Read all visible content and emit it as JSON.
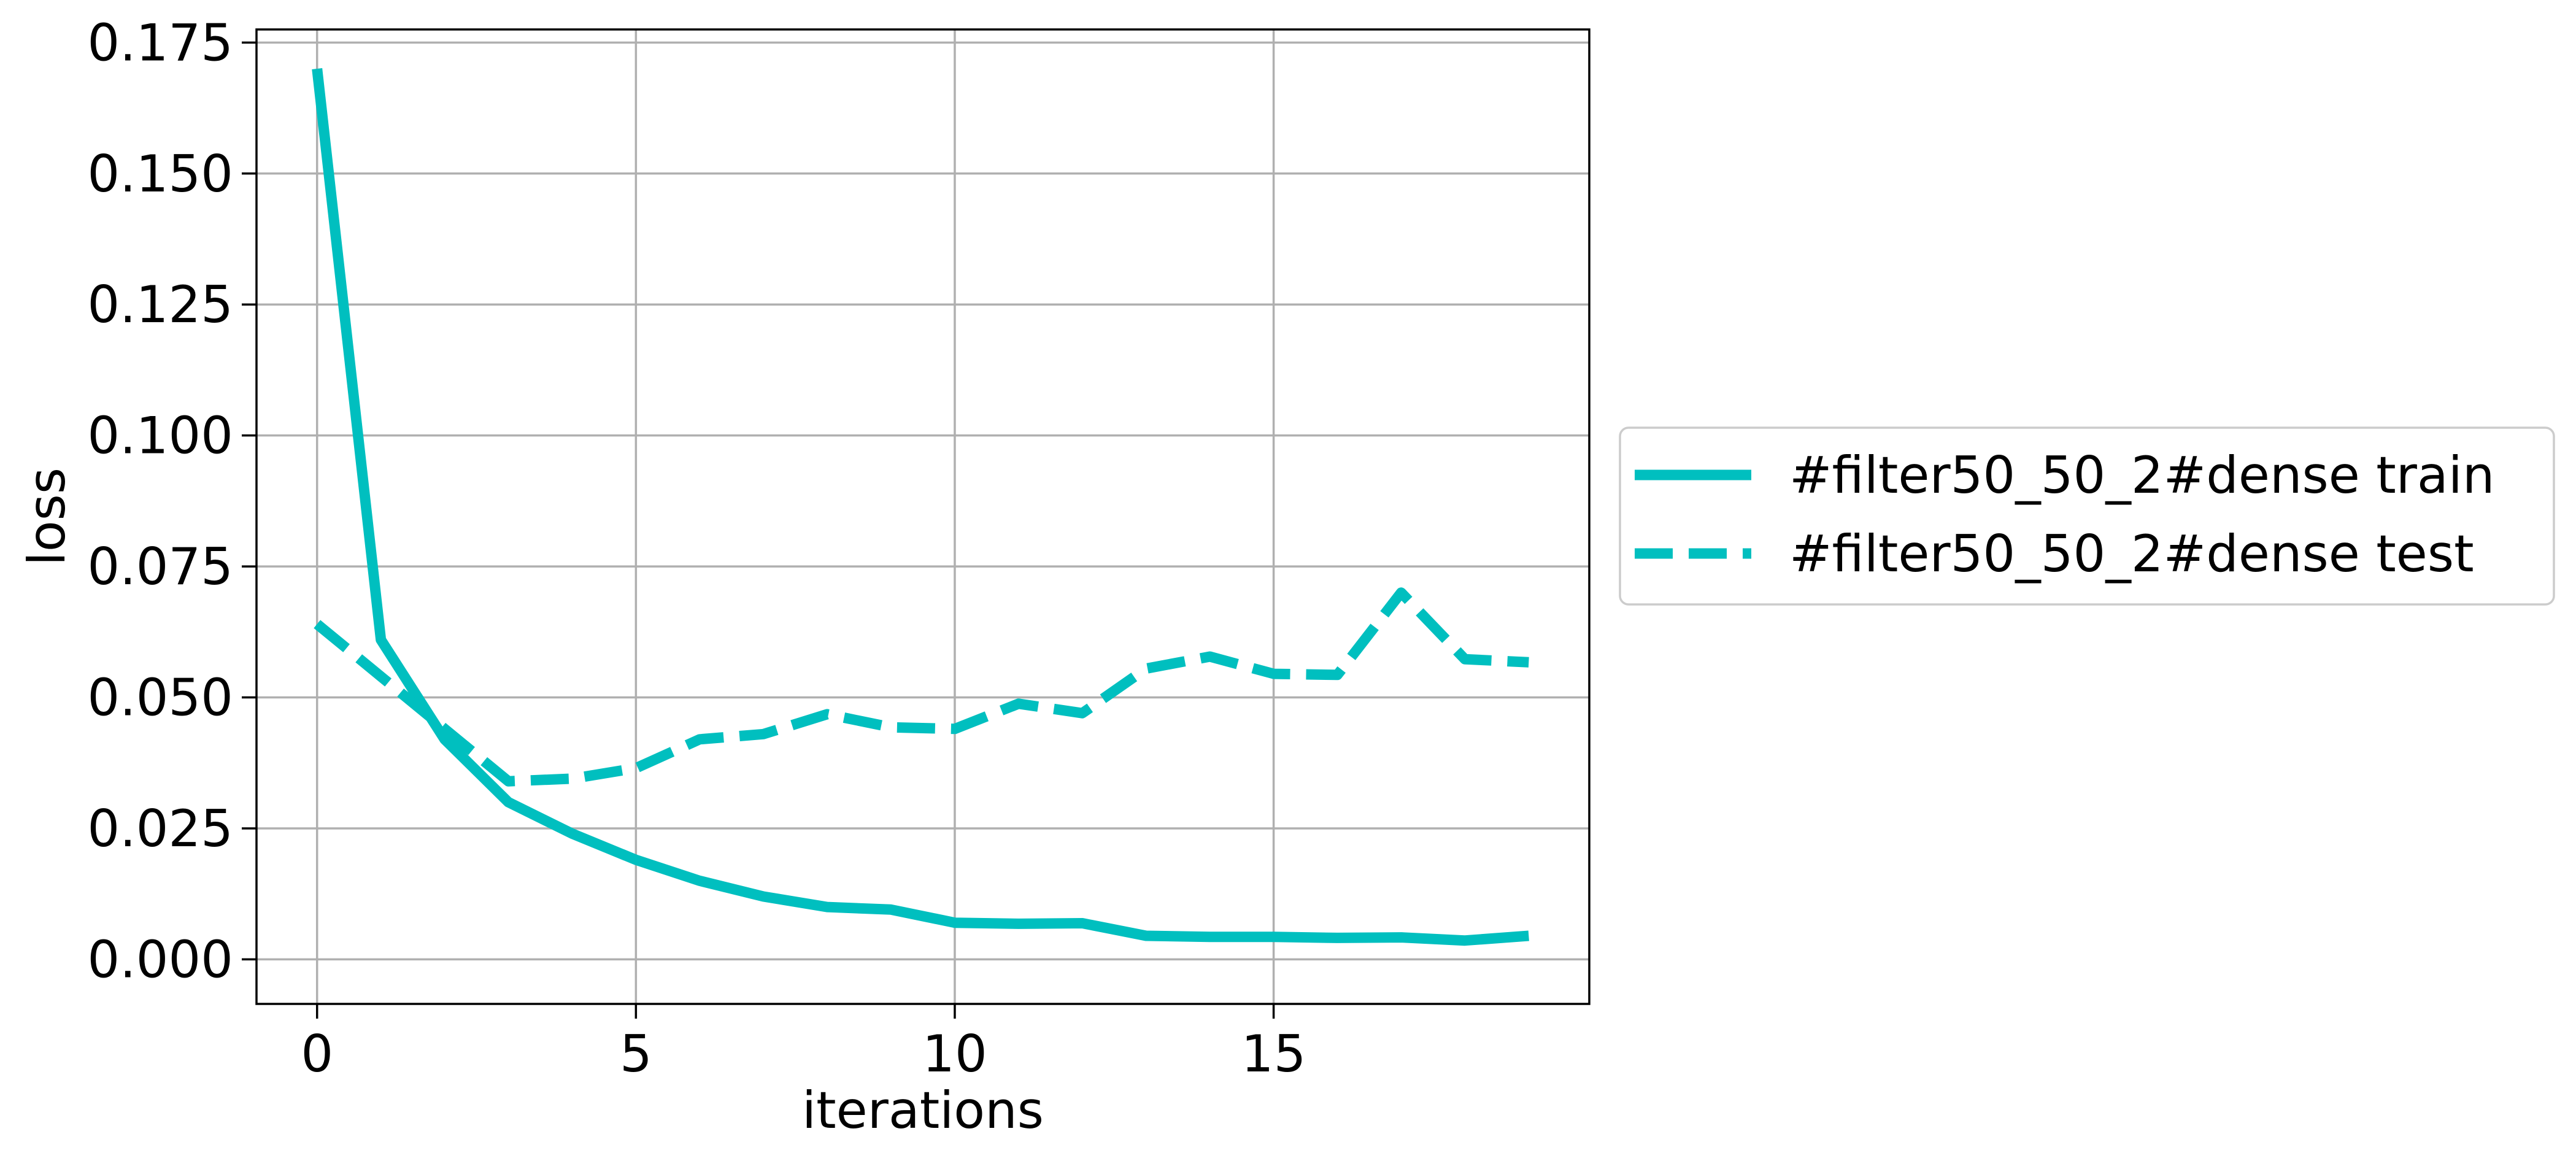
{
  "chart_data": {
    "type": "line",
    "title": "",
    "xlabel": "iterations",
    "ylabel": "loss",
    "xlim": [
      -0.95,
      19.95
    ],
    "ylim": [
      -0.0085,
      0.1775
    ],
    "xticks": [
      0,
      5,
      10,
      15
    ],
    "xtick_labels": [
      "0",
      "5",
      "10",
      "15"
    ],
    "yticks": [
      0.0,
      0.025,
      0.05,
      0.075,
      0.1,
      0.125,
      0.15,
      0.175
    ],
    "ytick_labels": [
      "0.000",
      "0.025",
      "0.050",
      "0.075",
      "0.100",
      "0.125",
      "0.150",
      "0.175"
    ],
    "grid": true,
    "legend_position": "outside right, center",
    "x": [
      0,
      1,
      2,
      3,
      4,
      5,
      6,
      7,
      8,
      9,
      10,
      11,
      12,
      13,
      14,
      15,
      16,
      17,
      18,
      19
    ],
    "series": [
      {
        "name": "#filter50_50_2#dense train",
        "color": "#00bfbf",
        "style": "solid",
        "values": [
          0.17,
          0.061,
          0.042,
          0.03,
          0.024,
          0.019,
          0.015,
          0.012,
          0.01,
          0.0095,
          0.007,
          0.0068,
          0.0069,
          0.0045,
          0.0043,
          0.0043,
          0.0041,
          0.0042,
          0.0036,
          0.0045
        ]
      },
      {
        "name": "#filter50_50_2#dense test",
        "color": "#00bfbf",
        "style": "dashed",
        "values": [
          0.064,
          0.054,
          0.044,
          0.034,
          0.0345,
          0.0365,
          0.042,
          0.043,
          0.0468,
          0.0443,
          0.044,
          0.0488,
          0.047,
          0.0555,
          0.0578,
          0.0545,
          0.0543,
          0.07,
          0.0573,
          0.0567
        ]
      }
    ]
  }
}
